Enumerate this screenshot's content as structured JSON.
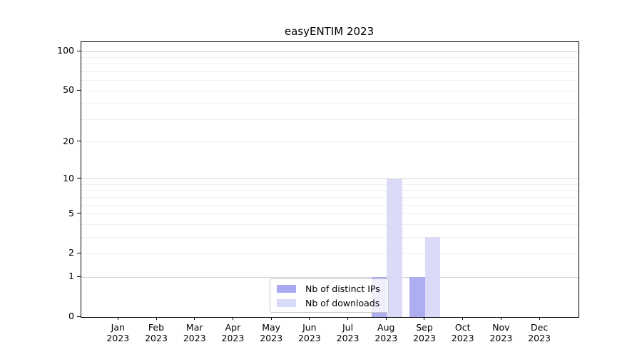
{
  "figure": {
    "background": "#ffffff"
  },
  "chart_data": {
    "type": "bar",
    "title": "easyENTIM 2023",
    "categories": [
      "Jan",
      "Feb",
      "Mar",
      "Apr",
      "May",
      "Jun",
      "Jul",
      "Aug",
      "Sep",
      "Oct",
      "Nov",
      "Dec"
    ],
    "x_tick_second_line": "2023",
    "series": [
      {
        "name": "Nb of distinct IPs",
        "color": "#a9a9f0",
        "values": [
          0,
          0,
          0,
          0,
          0,
          0,
          0,
          1,
          1,
          0,
          0,
          0
        ]
      },
      {
        "name": "Nb of downloads",
        "color": "#d9d9f8",
        "values": [
          0,
          0,
          0,
          0,
          0,
          0,
          0,
          10,
          3,
          0,
          0,
          0
        ]
      }
    ],
    "y_axis": {
      "scale": "log1p",
      "tick_labels": [
        0,
        1,
        2,
        5,
        10,
        20,
        50,
        100
      ],
      "minor_gridlines": [
        2,
        3,
        4,
        5,
        6,
        7,
        8,
        9,
        20,
        30,
        40,
        50,
        60,
        70,
        80,
        90
      ],
      "major_gridlines": [
        1,
        10,
        100
      ],
      "ylim": [
        0,
        117
      ]
    },
    "legend": {
      "position": "lower-center"
    },
    "colors": {
      "minor_grid": "#f0f0f0",
      "major_grid": "#d2d2d2",
      "axis": "#000000",
      "text": "#000000"
    }
  }
}
